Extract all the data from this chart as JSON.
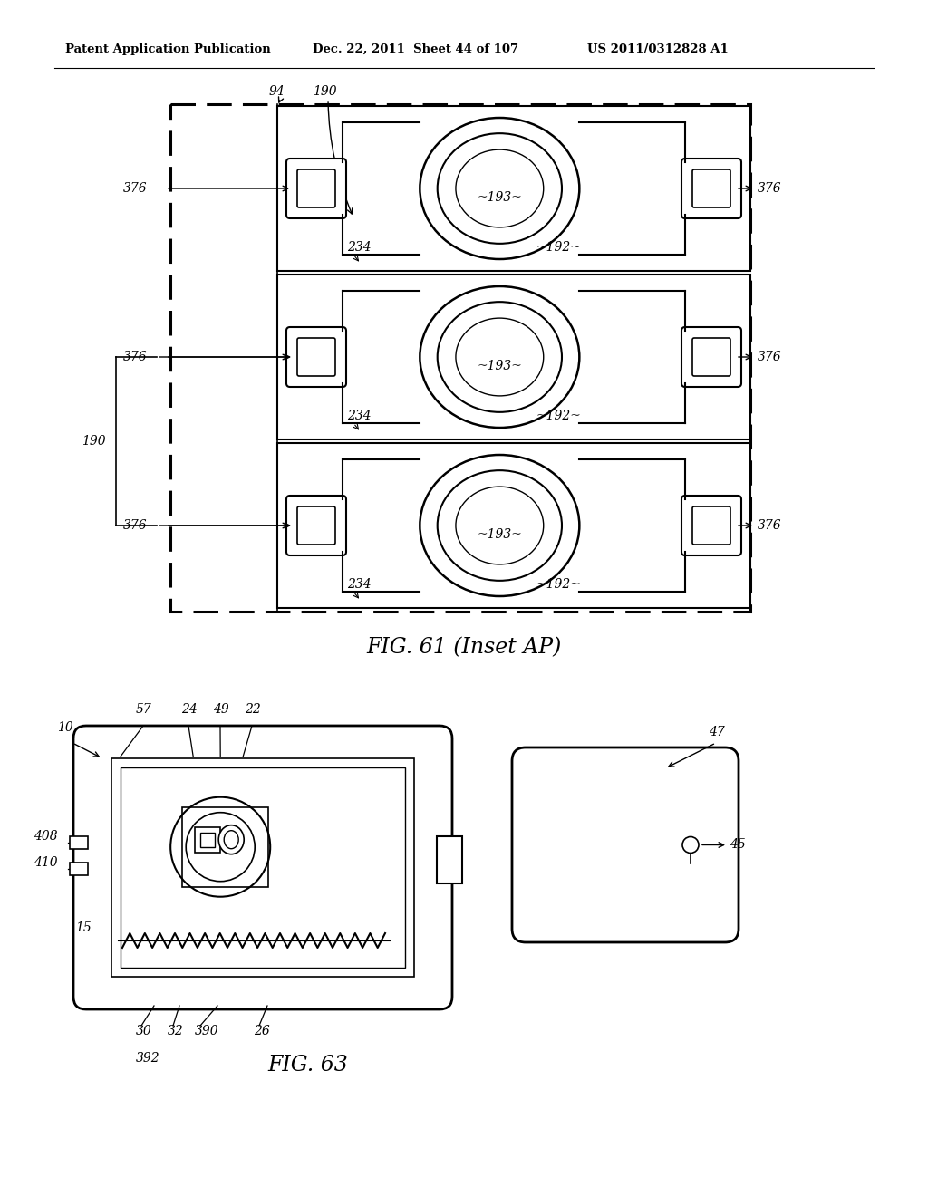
{
  "header_left": "Patent Application Publication",
  "header_mid": "Dec. 22, 2011  Sheet 44 of 107",
  "header_right": "US 2011/0312828 A1",
  "fig61_caption": "FIG. 61 (Inset AP)",
  "fig63_caption": "FIG. 63",
  "bg_color": "#ffffff",
  "line_color": "#000000"
}
